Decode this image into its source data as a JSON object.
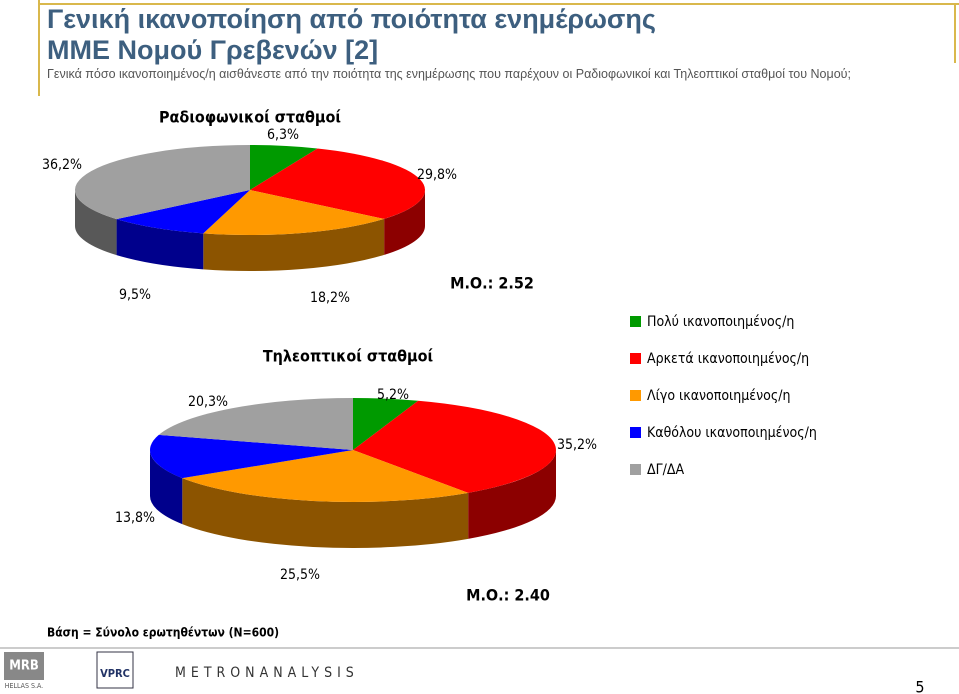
{
  "header": {
    "title": [
      "Γενική ικανοποίηση από ποιότητα ενημέρωσης",
      "ΜΜΕ Νομού Γρεβενών [2]"
    ],
    "subtitle": "Γενικά πόσο ικανοποιημένος/η αισθάνεστε από την ποιότητα της ενημέρωσης που παρέχουν οι Ραδιοφωνικοί και Τηλεοπτικοί σταθμοί του Νομού;"
  },
  "chart_data": [
    {
      "type": "pie",
      "title": "Ραδιοφωνικοί σταθμοί",
      "categories": [
        "Πολύ ικανοποιημένος/η",
        "Αρκετά ικανοποιημένος/η",
        "Λίγο ικανοποιημένος/η",
        "Καθόλου ικανοποιημένος/η",
        "ΔΓ/ΔΑ"
      ],
      "values": [
        6.3,
        29.8,
        18.2,
        9.5,
        36.2
      ],
      "value_labels": [
        "6,3%",
        "29,8%",
        "18,2%",
        "9,5%",
        "36,2%"
      ],
      "colors": [
        "#009a00",
        "#ff0000",
        "#ff9900",
        "#0000ff",
        "#a0a0a0"
      ],
      "annotation": "Μ.Ο.: 2.52"
    },
    {
      "type": "pie",
      "title": "Τηλεοπτικοί σταθμοί",
      "categories": [
        "Πολύ ικανοποιημένος/η",
        "Αρκετά ικανοποιημένος/η",
        "Λίγο ικανοποιημένος/η",
        "Καθόλου ικανοποιημένος/η",
        "ΔΓ/ΔΑ"
      ],
      "values": [
        5.2,
        35.2,
        25.5,
        13.8,
        20.3
      ],
      "value_labels": [
        "5,2%",
        "35,2%",
        "25,5%",
        "13,8%",
        "20,3%"
      ],
      "colors": [
        "#009a00",
        "#ff0000",
        "#ff9900",
        "#0000ff",
        "#a0a0a0"
      ],
      "annotation": "Μ.Ο.: 2.40"
    }
  ],
  "footer": {
    "base": "Βάση = Σύνολο ερωτηθέντων (Ν=600)",
    "logos": [
      "MRB",
      "HELLAS S.A.",
      "VPRC",
      "METRONANALYSIS"
    ],
    "page": "5"
  }
}
